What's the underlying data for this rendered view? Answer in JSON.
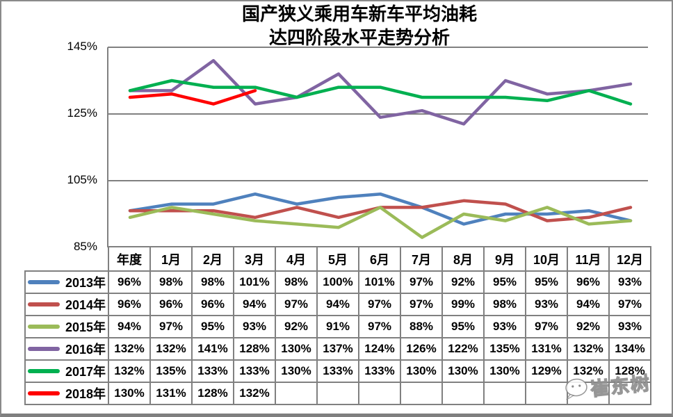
{
  "title": {
    "line1": "国产狭义乘用车新车平均油耗",
    "line2": "达四阶段水平走势分析"
  },
  "watermark": {
    "text": "崔东树"
  },
  "colors": {
    "grid": "#808080",
    "table_border": "#808080",
    "background": "#ffffff"
  },
  "chart_data": {
    "type": "line",
    "title": "国产狭义乘用车新车平均油耗 达四阶段水平走势分析",
    "xlabel": "",
    "ylabel": "",
    "legend_position": "table-left",
    "grid": "horizontal",
    "categories": [
      "年度",
      "1月",
      "2月",
      "3月",
      "4月",
      "5月",
      "6月",
      "7月",
      "8月",
      "9月",
      "10月",
      "11月",
      "12月"
    ],
    "y_axis": {
      "min": 85,
      "max": 145,
      "ticks": [
        {
          "label": "145%",
          "value": 145
        },
        {
          "label": "125%",
          "value": 125
        },
        {
          "label": "105%",
          "value": 105
        },
        {
          "label": "85%",
          "value": 85
        }
      ]
    },
    "value_suffix": "%",
    "series": [
      {
        "name": "2013年",
        "color": "#4F81BD",
        "values": [
          96,
          98,
          98,
          101,
          98,
          100,
          101,
          97,
          92,
          95,
          95,
          96,
          93
        ]
      },
      {
        "name": "2014年",
        "color": "#C0504D",
        "values": [
          96,
          96,
          96,
          94,
          97,
          94,
          97,
          97,
          99,
          98,
          93,
          94,
          97
        ]
      },
      {
        "name": "2015年",
        "color": "#9BBB59",
        "values": [
          94,
          97,
          95,
          93,
          92,
          91,
          97,
          88,
          95,
          93,
          97,
          92,
          93
        ]
      },
      {
        "name": "2016年",
        "color": "#8064A2",
        "values": [
          132,
          132,
          141,
          128,
          130,
          137,
          124,
          126,
          122,
          135,
          131,
          132,
          134
        ]
      },
      {
        "name": "2017年",
        "color": "#00B050",
        "values": [
          132,
          135,
          133,
          133,
          130,
          133,
          133,
          130,
          130,
          130,
          129,
          132,
          128
        ]
      },
      {
        "name": "2018年",
        "color": "#FF0000",
        "values": [
          130,
          131,
          128,
          132
        ]
      }
    ]
  }
}
